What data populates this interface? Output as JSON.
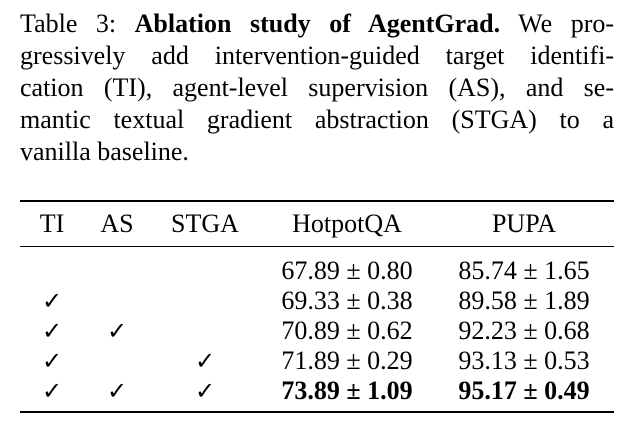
{
  "caption": {
    "label": "Table 3:",
    "title": "Ablation study of AgentGrad.",
    "lines": [
      "We pro-",
      "gressively add intervention-guided target identifi-",
      "cation (TI), agent-level supervision (AS), and se-",
      "mantic textual gradient abstraction (STGA) to a",
      "vanilla baseline."
    ]
  },
  "table": {
    "headers": [
      "TI",
      "AS",
      "STGA",
      "HotpotQA",
      "PUPA"
    ],
    "check_symbol": "✓",
    "rows": [
      {
        "TI": "",
        "AS": "",
        "STGA": "",
        "HotpotQA": "67.89 ± 0.80",
        "PUPA": "85.74 ± 1.65",
        "bold": false
      },
      {
        "TI": "✓",
        "AS": "",
        "STGA": "",
        "HotpotQA": "69.33 ± 0.38",
        "PUPA": "89.58 ± 1.89",
        "bold": false
      },
      {
        "TI": "✓",
        "AS": "✓",
        "STGA": "",
        "HotpotQA": "70.89 ± 0.62",
        "PUPA": "92.23 ± 0.68",
        "bold": false
      },
      {
        "TI": "✓",
        "AS": "",
        "STGA": "✓",
        "HotpotQA": "71.89 ± 0.29",
        "PUPA": "93.13 ± 0.53",
        "bold": false
      },
      {
        "TI": "✓",
        "AS": "✓",
        "STGA": "✓",
        "HotpotQA": "73.89 ± 1.09",
        "PUPA": "95.17 ± 0.49",
        "bold": true
      }
    ]
  }
}
